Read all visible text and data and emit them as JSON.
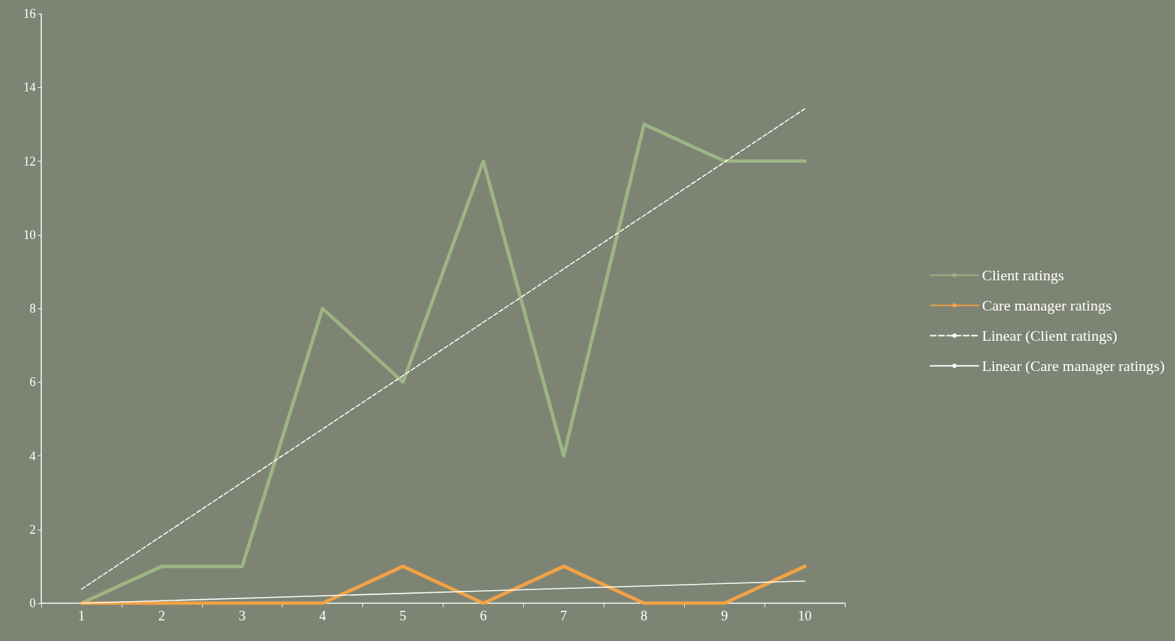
{
  "chart_data": {
    "type": "line",
    "categories": [
      "1",
      "2",
      "3",
      "4",
      "5",
      "6",
      "7",
      "8",
      "9",
      "10"
    ],
    "series": [
      {
        "name": "Client ratings",
        "color": "#9db584",
        "values": [
          0,
          1,
          1,
          8,
          6,
          12,
          4,
          13,
          12,
          12
        ],
        "line_style": "solid"
      },
      {
        "name": "Care manager ratings",
        "color": "#f2a245",
        "values": [
          0,
          0,
          0,
          0,
          1,
          0,
          1,
          0,
          0,
          1
        ],
        "line_style": "solid"
      },
      {
        "name": "Linear (Client ratings)",
        "color": "#ffffff",
        "x": [
          "1",
          "10"
        ],
        "values": [
          0.38,
          13.42
        ],
        "line_style": "dashed"
      },
      {
        "name": "Linear (Care manager ratings)",
        "color": "#ffffff",
        "x": [
          "1",
          "10"
        ],
        "values": [
          0,
          0.6
        ],
        "line_style": "solid"
      }
    ],
    "ylim": [
      0,
      16
    ],
    "yticks": [
      0,
      2,
      4,
      6,
      8,
      10,
      12,
      14,
      16
    ],
    "grid": false,
    "legend": "right",
    "marker": "none"
  }
}
